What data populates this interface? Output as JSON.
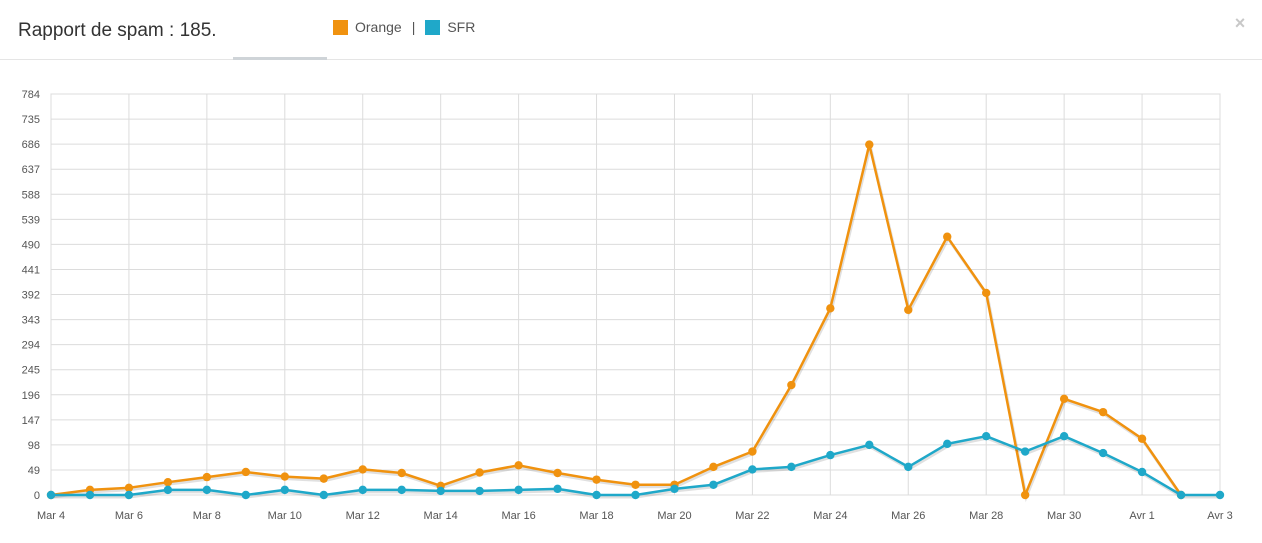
{
  "header": {
    "title": "Rapport de spam : 185.",
    "close_glyph": "×"
  },
  "legend": {
    "items": [
      {
        "label": "Orange",
        "color": "#f0920f"
      },
      {
        "label": "SFR",
        "color": "#1fa8c9"
      }
    ],
    "separator": "|"
  },
  "chart_data": {
    "type": "line",
    "x": [
      "Mar 4",
      "Mar 5",
      "Mar 6",
      "Mar 7",
      "Mar 8",
      "Mar 9",
      "Mar 10",
      "Mar 11",
      "Mar 12",
      "Mar 13",
      "Mar 14",
      "Mar 15",
      "Mar 16",
      "Mar 17",
      "Mar 18",
      "Mar 19",
      "Mar 20",
      "Mar 21",
      "Mar 22",
      "Mar 23",
      "Mar 24",
      "Mar 25",
      "Mar 26",
      "Mar 27",
      "Mar 28",
      "Mar 29",
      "Mar 30",
      "Mar 31",
      "Avr 1",
      "Avr 2",
      "Avr 3"
    ],
    "xticks": [
      "Mar 4",
      "Mar 6",
      "Mar 8",
      "Mar 10",
      "Mar 12",
      "Mar 14",
      "Mar 16",
      "Mar 18",
      "Mar 20",
      "Mar 22",
      "Mar 24",
      "Mar 26",
      "Mar 28",
      "Mar 30",
      "Avr 1",
      "Avr 3"
    ],
    "yticks": [
      0,
      49,
      98,
      147,
      196,
      245,
      294,
      343,
      392,
      441,
      490,
      539,
      588,
      637,
      686,
      735,
      784
    ],
    "ylim": [
      0,
      784
    ],
    "grid": true,
    "series": [
      {
        "name": "Orange",
        "color": "#f0920f",
        "values": [
          0,
          10,
          14,
          25,
          35,
          45,
          36,
          32,
          50,
          43,
          18,
          44,
          58,
          43,
          30,
          20,
          20,
          55,
          85,
          215,
          365,
          685,
          362,
          505,
          395,
          0,
          188,
          162,
          110,
          0,
          null
        ]
      },
      {
        "name": "SFR",
        "color": "#1fa8c9",
        "values": [
          0,
          0,
          0,
          10,
          10,
          0,
          10,
          0,
          10,
          10,
          8,
          8,
          10,
          12,
          0,
          0,
          12,
          20,
          50,
          55,
          78,
          98,
          55,
          100,
          115,
          85,
          115,
          82,
          45,
          0,
          0
        ]
      }
    ]
  }
}
